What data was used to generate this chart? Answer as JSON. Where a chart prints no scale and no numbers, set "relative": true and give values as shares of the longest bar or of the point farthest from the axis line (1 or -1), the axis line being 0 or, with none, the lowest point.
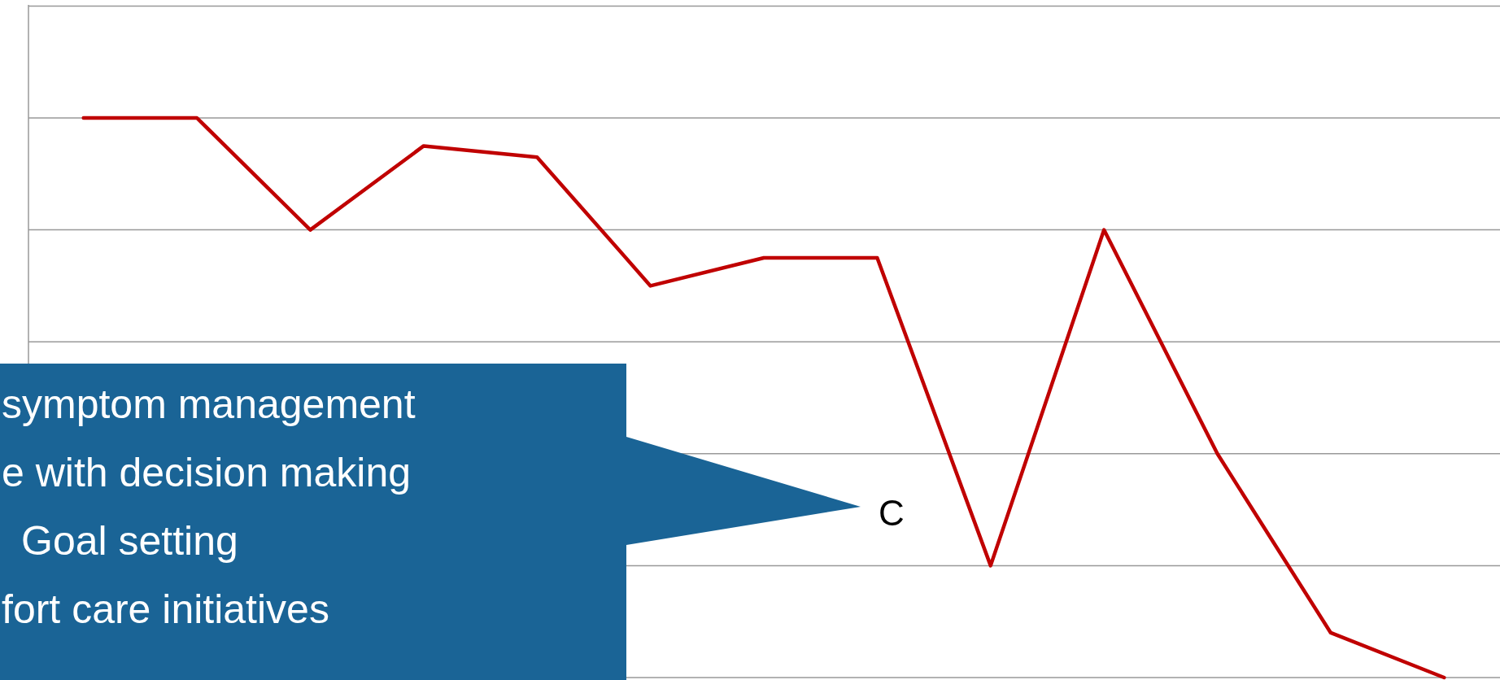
{
  "chart_data": {
    "type": "line",
    "relative": true,
    "grid": "y",
    "categories": [
      null,
      null,
      null,
      null,
      null,
      null,
      null,
      null,
      null,
      null,
      null,
      null,
      null
    ],
    "series": [
      {
        "color": "#c00000",
        "values": [
          1,
          1,
          0.8,
          0.95,
          0.93,
          0.7,
          0.75,
          0.75,
          0.2,
          0.8,
          0.4,
          0.08,
          0
        ]
      }
    ],
    "annotations": [
      "symptom management",
      "e with decision making",
      "Goal setting",
      "fort care initiatives",
      "C"
    ]
  }
}
